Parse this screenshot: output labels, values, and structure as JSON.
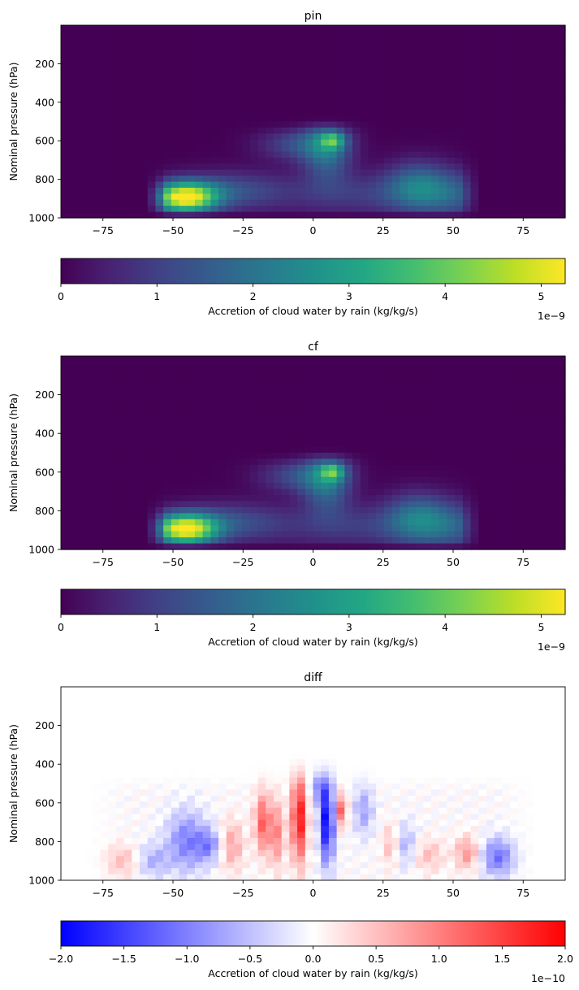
{
  "chart_data": [
    {
      "type": "heatmap",
      "title": "pin",
      "xlabel": "",
      "ylabel": "Nominal pressure (hPa)",
      "xlim": [
        -90,
        90
      ],
      "ylim": [
        1000,
        0
      ],
      "xticks": [
        -75,
        -50,
        -25,
        0,
        25,
        50,
        75
      ],
      "yticks": [
        200,
        400,
        600,
        800,
        1000
      ],
      "colormap": "viridis",
      "colorbar": {
        "label": "Accretion of cloud water by rain (kg/kg/s)",
        "range": [
          0,
          5.25
        ],
        "ticks": [
          0,
          1,
          2,
          3,
          4,
          5
        ],
        "scale_label": "1e−9",
        "orientation": "horizontal"
      },
      "features": [
        {
          "lat": -46,
          "p": 895,
          "amp": 5.2,
          "slat": 8,
          "sp": 55
        },
        {
          "lat": -30,
          "p": 860,
          "amp": 1.2,
          "slat": 14,
          "sp": 70
        },
        {
          "lat": 5,
          "p": 640,
          "amp": 1.9,
          "slat": 6,
          "sp": 120
        },
        {
          "lat": 7,
          "p": 600,
          "amp": 2.0,
          "slat": 3,
          "sp": 30
        },
        {
          "lat": -5,
          "p": 620,
          "amp": 1.2,
          "slat": 10,
          "sp": 60
        },
        {
          "lat": 37,
          "p": 830,
          "amp": 1.5,
          "slat": 8,
          "sp": 90
        },
        {
          "lat": 50,
          "p": 880,
          "amp": 1.1,
          "slat": 10,
          "sp": 90
        },
        {
          "lat": 20,
          "p": 880,
          "amp": 0.9,
          "slat": 25,
          "sp": 80
        }
      ]
    },
    {
      "type": "heatmap",
      "title": "cf",
      "xlabel": "",
      "ylabel": "Nominal pressure (hPa)",
      "xlim": [
        -90,
        90
      ],
      "ylim": [
        1000,
        0
      ],
      "xticks": [
        -75,
        -50,
        -25,
        0,
        25,
        50,
        75
      ],
      "yticks": [
        200,
        400,
        600,
        800,
        1000
      ],
      "colormap": "viridis",
      "colorbar": {
        "label": "Accretion of cloud water by rain (kg/kg/s)",
        "range": [
          0,
          5.25
        ],
        "ticks": [
          0,
          1,
          2,
          3,
          4,
          5
        ],
        "scale_label": "1e−9",
        "orientation": "horizontal"
      },
      "features": [
        {
          "lat": -46,
          "p": 895,
          "amp": 5.1,
          "slat": 8,
          "sp": 55
        },
        {
          "lat": -30,
          "p": 860,
          "amp": 1.2,
          "slat": 14,
          "sp": 70
        },
        {
          "lat": 5,
          "p": 640,
          "amp": 1.9,
          "slat": 6,
          "sp": 120
        },
        {
          "lat": 7,
          "p": 600,
          "amp": 2.1,
          "slat": 3,
          "sp": 30
        },
        {
          "lat": -5,
          "p": 620,
          "amp": 1.2,
          "slat": 10,
          "sp": 60
        },
        {
          "lat": 37,
          "p": 830,
          "amp": 1.5,
          "slat": 8,
          "sp": 90
        },
        {
          "lat": 50,
          "p": 880,
          "amp": 1.1,
          "slat": 10,
          "sp": 90
        },
        {
          "lat": 20,
          "p": 880,
          "amp": 0.9,
          "slat": 25,
          "sp": 80
        }
      ]
    },
    {
      "type": "heatmap",
      "title": "diff",
      "xlabel": "",
      "ylabel": "Nominal pressure (hPa)",
      "xlim": [
        -90,
        90
      ],
      "ylim": [
        1000,
        0
      ],
      "xticks": [
        -75,
        -50,
        -25,
        0,
        25,
        50,
        75
      ],
      "yticks": [
        200,
        400,
        600,
        800,
        1000
      ],
      "colormap": "bwr",
      "colorbar": {
        "label": "Accretion of cloud water by rain (kg/kg/s)",
        "range": [
          -2.0,
          2.0
        ],
        "ticks": [
          -2.0,
          -1.5,
          -1.0,
          -0.5,
          0.0,
          0.5,
          1.0,
          1.5,
          2.0
        ],
        "tick_labels": [
          "−2.0",
          "−1.5",
          "−1.0",
          "−0.5",
          "0.0",
          "0.5",
          "1.0",
          "1.5",
          "2.0"
        ],
        "scale_label": "1e−10",
        "orientation": "horizontal"
      },
      "features": [
        {
          "lat": -5,
          "p": 680,
          "amp": 1.9,
          "slat": 1.8,
          "sp": 160
        },
        {
          "lat": -18,
          "p": 700,
          "amp": 1.2,
          "slat": 2,
          "sp": 110
        },
        {
          "lat": -13,
          "p": 760,
          "amp": 0.9,
          "slat": 2,
          "sp": 120
        },
        {
          "lat": -29,
          "p": 820,
          "amp": 0.7,
          "slat": 3,
          "sp": 90
        },
        {
          "lat": 28,
          "p": 820,
          "amp": 0.6,
          "slat": 2,
          "sp": 80
        },
        {
          "lat": 55,
          "p": 860,
          "amp": 0.8,
          "slat": 3,
          "sp": 60
        },
        {
          "lat": 10,
          "p": 640,
          "amp": 1.2,
          "slat": 1.5,
          "sp": 60
        },
        {
          "lat": -68,
          "p": 900,
          "amp": 0.5,
          "slat": 4,
          "sp": 60
        },
        {
          "lat": 41,
          "p": 870,
          "amp": 0.5,
          "slat": 4,
          "sp": 60
        },
        {
          "lat": 5,
          "p": 700,
          "amp": -2.0,
          "slat": 1.8,
          "sp": 150
        },
        {
          "lat": 2,
          "p": 520,
          "amp": -0.8,
          "slat": 2,
          "sp": 60
        },
        {
          "lat": -45,
          "p": 800,
          "amp": -1.0,
          "slat": 5,
          "sp": 110
        },
        {
          "lat": -37,
          "p": 820,
          "amp": -0.8,
          "slat": 3,
          "sp": 60
        },
        {
          "lat": 66,
          "p": 880,
          "amp": -1.1,
          "slat": 4,
          "sp": 70
        },
        {
          "lat": 18,
          "p": 640,
          "amp": -0.7,
          "slat": 2.5,
          "sp": 90
        },
        {
          "lat": 33,
          "p": 820,
          "amp": -0.6,
          "slat": 3,
          "sp": 80
        },
        {
          "lat": -57,
          "p": 900,
          "amp": -0.6,
          "slat": 4,
          "sp": 60
        }
      ]
    }
  ]
}
